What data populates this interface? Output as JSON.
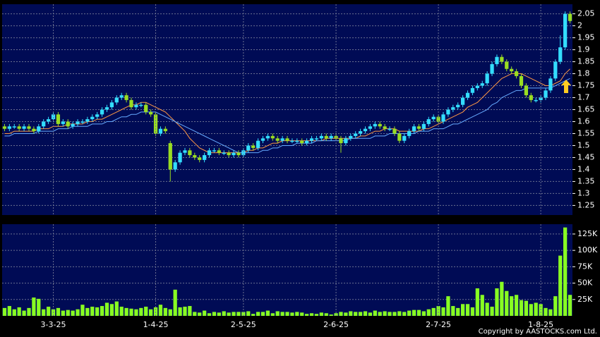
{
  "chart_data": [
    {
      "type": "candlestick",
      "up_color": "#33ddff",
      "down_color": "#99dd22",
      "ylim": [
        1.21,
        2.09
      ],
      "yticks": [
        1.25,
        1.3,
        1.35,
        1.4,
        1.45,
        1.5,
        1.55,
        1.6,
        1.65,
        1.7,
        1.75,
        1.8,
        1.85,
        1.9,
        1.95,
        2,
        2.05
      ],
      "grid": true,
      "open": [
        1.58,
        1.57,
        1.58,
        1.58,
        1.57,
        1.58,
        1.57,
        1.56,
        1.58,
        1.6,
        1.61,
        1.63,
        1.59,
        1.6,
        1.58,
        1.59,
        1.6,
        1.6,
        1.61,
        1.62,
        1.63,
        1.65,
        1.66,
        1.68,
        1.7,
        1.71,
        1.69,
        1.66,
        1.67,
        1.67,
        1.64,
        1.63,
        1.55,
        1.57,
        1.51,
        1.4,
        1.43,
        1.47,
        1.48,
        1.46,
        1.45,
        1.44,
        1.46,
        1.48,
        1.48,
        1.47,
        1.47,
        1.46,
        1.47,
        1.46,
        1.48,
        1.5,
        1.49,
        1.52,
        1.53,
        1.54,
        1.53,
        1.52,
        1.53,
        1.52,
        1.52,
        1.52,
        1.51,
        1.52,
        1.53,
        1.53,
        1.54,
        1.53,
        1.54,
        1.53,
        1.51,
        1.53,
        1.54,
        1.55,
        1.56,
        1.57,
        1.58,
        1.59,
        1.58,
        1.57,
        1.57,
        1.55,
        1.52,
        1.54,
        1.56,
        1.58,
        1.57,
        1.59,
        1.61,
        1.62,
        1.6,
        1.63,
        1.65,
        1.66,
        1.67,
        1.7,
        1.72,
        1.74,
        1.75,
        1.76,
        1.8,
        1.84,
        1.87,
        1.85,
        1.82,
        1.81,
        1.79,
        1.75,
        1.71,
        1.69,
        1.69,
        1.7,
        1.73,
        1.78,
        1.85,
        1.91,
        2.05
      ],
      "high": [
        1.59,
        1.59,
        1.59,
        1.59,
        1.59,
        1.59,
        1.58,
        1.59,
        1.61,
        1.62,
        1.64,
        1.64,
        1.61,
        1.61,
        1.6,
        1.61,
        1.61,
        1.62,
        1.63,
        1.64,
        1.66,
        1.67,
        1.69,
        1.71,
        1.72,
        1.72,
        1.7,
        1.68,
        1.68,
        1.68,
        1.65,
        1.64,
        1.58,
        1.58,
        1.52,
        1.44,
        1.48,
        1.49,
        1.49,
        1.47,
        1.46,
        1.47,
        1.49,
        1.49,
        1.49,
        1.48,
        1.48,
        1.48,
        1.48,
        1.49,
        1.51,
        1.51,
        1.53,
        1.54,
        1.55,
        1.55,
        1.54,
        1.54,
        1.54,
        1.53,
        1.53,
        1.53,
        1.53,
        1.54,
        1.54,
        1.55,
        1.55,
        1.55,
        1.55,
        1.54,
        1.54,
        1.55,
        1.56,
        1.57,
        1.58,
        1.59,
        1.6,
        1.6,
        1.59,
        1.58,
        1.58,
        1.56,
        1.55,
        1.57,
        1.59,
        1.59,
        1.6,
        1.62,
        1.63,
        1.63,
        1.64,
        1.66,
        1.67,
        1.68,
        1.71,
        1.73,
        1.75,
        1.76,
        1.77,
        1.81,
        1.85,
        1.88,
        1.88,
        1.86,
        1.83,
        1.82,
        1.8,
        1.76,
        1.72,
        1.7,
        1.71,
        1.74,
        1.79,
        1.86,
        1.96,
        2.06,
        2.06
      ],
      "low": [
        1.56,
        1.56,
        1.57,
        1.56,
        1.56,
        1.56,
        1.55,
        1.55,
        1.57,
        1.59,
        1.6,
        1.58,
        1.58,
        1.57,
        1.57,
        1.58,
        1.59,
        1.59,
        1.6,
        1.61,
        1.62,
        1.64,
        1.65,
        1.67,
        1.69,
        1.68,
        1.65,
        1.65,
        1.66,
        1.63,
        1.62,
        1.54,
        1.54,
        1.55,
        1.35,
        1.39,
        1.42,
        1.46,
        1.45,
        1.44,
        1.43,
        1.43,
        1.45,
        1.47,
        1.46,
        1.46,
        1.45,
        1.45,
        1.45,
        1.45,
        1.47,
        1.48,
        1.48,
        1.51,
        1.52,
        1.52,
        1.51,
        1.51,
        1.51,
        1.51,
        1.51,
        1.5,
        1.5,
        1.51,
        1.52,
        1.52,
        1.52,
        1.52,
        1.52,
        1.47,
        1.5,
        1.52,
        1.53,
        1.54,
        1.55,
        1.56,
        1.57,
        1.57,
        1.56,
        1.56,
        1.54,
        1.51,
        1.51,
        1.53,
        1.55,
        1.56,
        1.56,
        1.58,
        1.6,
        1.59,
        1.59,
        1.62,
        1.64,
        1.65,
        1.66,
        1.69,
        1.71,
        1.73,
        1.74,
        1.75,
        1.79,
        1.83,
        1.84,
        1.81,
        1.8,
        1.78,
        1.74,
        1.7,
        1.68,
        1.68,
        1.68,
        1.69,
        1.72,
        1.77,
        1.84,
        1.9,
        2.01
      ],
      "close": [
        1.57,
        1.58,
        1.58,
        1.57,
        1.58,
        1.57,
        1.56,
        1.58,
        1.6,
        1.61,
        1.63,
        1.59,
        1.6,
        1.58,
        1.59,
        1.6,
        1.6,
        1.61,
        1.62,
        1.63,
        1.65,
        1.66,
        1.68,
        1.7,
        1.71,
        1.69,
        1.66,
        1.67,
        1.67,
        1.64,
        1.63,
        1.55,
        1.57,
        1.56,
        1.4,
        1.43,
        1.47,
        1.48,
        1.46,
        1.45,
        1.44,
        1.46,
        1.48,
        1.48,
        1.47,
        1.47,
        1.46,
        1.47,
        1.46,
        1.48,
        1.5,
        1.49,
        1.52,
        1.53,
        1.54,
        1.53,
        1.52,
        1.53,
        1.52,
        1.52,
        1.52,
        1.51,
        1.52,
        1.53,
        1.53,
        1.54,
        1.53,
        1.54,
        1.53,
        1.51,
        1.53,
        1.54,
        1.55,
        1.56,
        1.57,
        1.58,
        1.59,
        1.58,
        1.57,
        1.57,
        1.55,
        1.52,
        1.54,
        1.56,
        1.58,
        1.57,
        1.59,
        1.61,
        1.62,
        1.6,
        1.63,
        1.65,
        1.66,
        1.67,
        1.7,
        1.72,
        1.74,
        1.75,
        1.76,
        1.8,
        1.84,
        1.87,
        1.85,
        1.82,
        1.81,
        1.79,
        1.75,
        1.71,
        1.69,
        1.69,
        1.7,
        1.73,
        1.78,
        1.85,
        1.91,
        2.05,
        2.02
      ],
      "series": [
        {
          "color": "#ff9944",
          "values": [
            1.55,
            1.55,
            1.56,
            1.56,
            1.56,
            1.56,
            1.56,
            1.57,
            1.57,
            1.57,
            1.58,
            1.58,
            1.58,
            1.59,
            1.59,
            1.59,
            1.59,
            1.6,
            1.6,
            1.61,
            1.61,
            1.62,
            1.63,
            1.64,
            1.65,
            1.66,
            1.67,
            1.67,
            1.68,
            1.68,
            1.67,
            1.66,
            1.65,
            1.64,
            1.62,
            1.6,
            1.58,
            1.56,
            1.53,
            1.51,
            1.49,
            1.48,
            1.47,
            1.47,
            1.47,
            1.47,
            1.47,
            1.47,
            1.47,
            1.47,
            1.48,
            1.48,
            1.49,
            1.49,
            1.5,
            1.51,
            1.51,
            1.52,
            1.52,
            1.52,
            1.52,
            1.52,
            1.52,
            1.52,
            1.52,
            1.52,
            1.53,
            1.53,
            1.53,
            1.53,
            1.53,
            1.53,
            1.53,
            1.54,
            1.54,
            1.55,
            1.56,
            1.56,
            1.57,
            1.57,
            1.57,
            1.56,
            1.56,
            1.56,
            1.56,
            1.56,
            1.57,
            1.57,
            1.58,
            1.59,
            1.6,
            1.61,
            1.62,
            1.63,
            1.64,
            1.66,
            1.67,
            1.68,
            1.7,
            1.72,
            1.74,
            1.76,
            1.78,
            1.79,
            1.8,
            1.8,
            1.8,
            1.79,
            1.78,
            1.77,
            1.76,
            1.75,
            1.75,
            1.76,
            1.77,
            1.8,
            1.82
          ]
        },
        {
          "color": "#66aaff",
          "values": [
            1.54,
            1.54,
            1.55,
            1.55,
            1.55,
            1.55,
            1.55,
            1.56,
            1.56,
            1.56,
            1.56,
            1.57,
            1.57,
            1.57,
            1.58,
            1.58,
            1.58,
            1.58,
            1.59,
            1.59,
            1.59,
            1.6,
            1.6,
            1.61,
            1.62,
            1.62,
            1.63,
            1.63,
            1.64,
            1.64,
            1.64,
            1.64,
            1.63,
            1.62,
            1.61,
            1.6,
            1.59,
            1.58,
            1.57,
            1.56,
            1.55,
            1.54,
            1.53,
            1.52,
            1.51,
            1.5,
            1.49,
            1.48,
            1.47,
            1.47,
            1.47,
            1.47,
            1.47,
            1.48,
            1.48,
            1.49,
            1.49,
            1.5,
            1.5,
            1.5,
            1.51,
            1.51,
            1.51,
            1.51,
            1.52,
            1.52,
            1.52,
            1.52,
            1.52,
            1.52,
            1.52,
            1.53,
            1.53,
            1.53,
            1.53,
            1.53,
            1.54,
            1.54,
            1.54,
            1.55,
            1.55,
            1.55,
            1.55,
            1.55,
            1.55,
            1.56,
            1.56,
            1.56,
            1.57,
            1.57,
            1.57,
            1.58,
            1.59,
            1.59,
            1.6,
            1.61,
            1.62,
            1.63,
            1.64,
            1.65,
            1.67,
            1.68,
            1.7,
            1.71,
            1.72,
            1.73,
            1.73,
            1.74,
            1.74,
            1.74,
            1.74,
            1.74,
            1.74,
            1.75,
            1.76,
            1.77,
            1.78
          ]
        }
      ]
    },
    {
      "type": "bar",
      "color": "#88ff22",
      "categories": [
        null,
        null,
        null,
        null,
        null,
        null,
        null,
        null,
        null,
        null,
        "3-3-25",
        null,
        null,
        null,
        null,
        null,
        null,
        null,
        null,
        null,
        null,
        null,
        null,
        null,
        null,
        null,
        null,
        null,
        null,
        null,
        null,
        "1-4-25",
        null,
        null,
        null,
        null,
        null,
        null,
        null,
        null,
        null,
        null,
        null,
        null,
        null,
        null,
        null,
        null,
        null,
        "2-5-25",
        null,
        null,
        null,
        null,
        null,
        null,
        null,
        null,
        null,
        null,
        null,
        null,
        null,
        null,
        null,
        null,
        null,
        null,
        "2-6-25",
        null,
        null,
        null,
        null,
        null,
        null,
        null,
        null,
        null,
        null,
        null,
        null,
        null,
        null,
        null,
        null,
        null,
        null,
        null,
        null,
        "2-7-25",
        null,
        null,
        null,
        null,
        null,
        null,
        null,
        null,
        null,
        null,
        null,
        null,
        null,
        null,
        null,
        null,
        null,
        null,
        null,
        null,
        "1-8-25",
        null,
        null,
        null,
        null,
        null,
        null
      ],
      "values": [
        12000,
        15000,
        10000,
        13000,
        8000,
        12000,
        28000,
        26000,
        10000,
        14000,
        10000,
        12000,
        8000,
        9000,
        8000,
        10000,
        17000,
        12000,
        14000,
        13000,
        15000,
        20000,
        18000,
        22000,
        14000,
        12000,
        11000,
        10000,
        12000,
        14000,
        10000,
        13000,
        17000,
        12000,
        10000,
        40000,
        13000,
        14000,
        15000,
        6000,
        5000,
        8000,
        4000,
        6000,
        5000,
        7000,
        5000,
        6000,
        6000,
        6000,
        7000,
        3000,
        6000,
        6000,
        8000,
        4000,
        7000,
        6000,
        6000,
        5000,
        6000,
        5000,
        3000,
        4000,
        3000,
        5000,
        4000,
        2000,
        4000,
        6000,
        5000,
        7000,
        6000,
        6000,
        7000,
        5000,
        8000,
        6000,
        7000,
        6000,
        6000,
        7000,
        6000,
        8000,
        9000,
        9000,
        7000,
        10000,
        12000,
        15000,
        13000,
        30000,
        15000,
        12000,
        18000,
        18000,
        13000,
        42000,
        32000,
        20000,
        14000,
        42000,
        52000,
        38000,
        30000,
        32000,
        24000,
        23000,
        18000,
        20000,
        18000,
        12000,
        10000,
        30000,
        92000,
        135000,
        32000
      ],
      "ylim": [
        0,
        140000
      ],
      "yticks": [
        {
          "value": 25000,
          "label": "25K"
        },
        {
          "value": 50000,
          "label": "50K"
        },
        {
          "value": 75000,
          "label": "75K"
        },
        {
          "value": 100000,
          "label": "100K"
        },
        {
          "value": 125000,
          "label": "125K"
        }
      ],
      "grid": true,
      "credit": "Copyright by AASTOCKS.com Ltd."
    }
  ]
}
